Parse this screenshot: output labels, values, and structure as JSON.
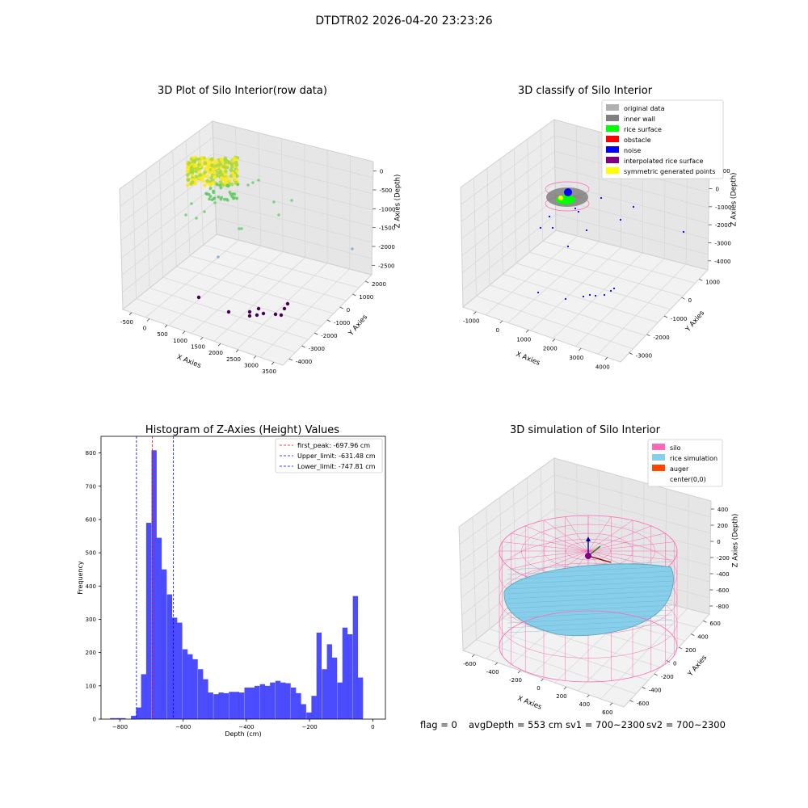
{
  "figure": {
    "title": "DTDTR02 2026-04-20 23:23:26"
  },
  "status": {
    "flag": "flag = 0",
    "avg_depth": "avgDepth = 553 cm",
    "sv1": "sv1 = 700~2300",
    "sv2": "sv2 = 700~2300"
  },
  "chart_data": [
    {
      "type": "scatter",
      "title": "3D Plot of Silo Interior(row data)",
      "xlabel": "X Axies",
      "ylabel": "Y Axies",
      "zlabel": "Z Axies (Depth)",
      "x_ticks": [
        "-500",
        "0",
        "500",
        "1000",
        "1500",
        "2000",
        "2500",
        "3000",
        "3500"
      ],
      "y_ticks": [
        "2000",
        "1000",
        "0",
        "-1000",
        "-2000",
        "-3000",
        "-4000"
      ],
      "z_ticks": [
        "0",
        "-500",
        "-1000",
        "-1500",
        "-2000",
        "-2500"
      ],
      "colormap": [
        "#440154",
        "#3b528b",
        "#21918c",
        "#5ec962",
        "#fde725"
      ]
    },
    {
      "type": "scatter",
      "title": "3D classify of Silo Interior",
      "xlabel": "X Axies",
      "ylabel": "Y Axies",
      "zlabel": "Z Axies (Depth)",
      "x_ticks": [
        "-1000",
        "0",
        "1000",
        "2000",
        "3000",
        "4000"
      ],
      "y_ticks": [
        "1000",
        "0",
        "-1000",
        "-2000",
        "-3000"
      ],
      "z_ticks": [
        "1000",
        "0",
        "-1000",
        "-2000",
        "-3000",
        "-4000"
      ],
      "legend": [
        {
          "label": "original data",
          "color": "#b0b0b0"
        },
        {
          "label": "inner wall",
          "color": "#808080"
        },
        {
          "label": "rice surface",
          "color": "#00ff00"
        },
        {
          "label": "obstacle",
          "color": "#ff0000"
        },
        {
          "label": "noise",
          "color": "#0000ff"
        },
        {
          "label": "interpolated rice surface",
          "color": "#800080"
        },
        {
          "label": "symmetric generated points",
          "color": "#ffff00"
        }
      ]
    },
    {
      "type": "bar",
      "title": "Histogram of Z-Axies (Height) Values",
      "xlabel": "Depth (cm)",
      "ylabel": "Frequency",
      "xlim": [
        -860,
        40
      ],
      "ylim": [
        0,
        850
      ],
      "x_ticks": [
        -800,
        -600,
        -400,
        -200,
        0
      ],
      "y_ticks": [
        0,
        100,
        200,
        300,
        400,
        500,
        600,
        700,
        800
      ],
      "bar_color": "#0000ff",
      "bin_width": 16.3,
      "bins": [
        {
          "x": -823,
          "v": 3
        },
        {
          "x": -806,
          "v": 3
        },
        {
          "x": -790,
          "v": 3
        },
        {
          "x": -774,
          "v": 0
        },
        {
          "x": -757,
          "v": 10
        },
        {
          "x": -741,
          "v": 35
        },
        {
          "x": -725,
          "v": 135
        },
        {
          "x": -709,
          "v": 590
        },
        {
          "x": -692,
          "v": 808
        },
        {
          "x": -676,
          "v": 545
        },
        {
          "x": -660,
          "v": 450
        },
        {
          "x": -643,
          "v": 375
        },
        {
          "x": -627,
          "v": 305
        },
        {
          "x": -611,
          "v": 290
        },
        {
          "x": -594,
          "v": 210
        },
        {
          "x": -578,
          "v": 195
        },
        {
          "x": -562,
          "v": 180
        },
        {
          "x": -545,
          "v": 150
        },
        {
          "x": -529,
          "v": 120
        },
        {
          "x": -513,
          "v": 80
        },
        {
          "x": -496,
          "v": 75
        },
        {
          "x": -480,
          "v": 80
        },
        {
          "x": -464,
          "v": 78
        },
        {
          "x": -447,
          "v": 82
        },
        {
          "x": -431,
          "v": 82
        },
        {
          "x": -415,
          "v": 80
        },
        {
          "x": -398,
          "v": 95
        },
        {
          "x": -382,
          "v": 95
        },
        {
          "x": -366,
          "v": 100
        },
        {
          "x": -349,
          "v": 105
        },
        {
          "x": -333,
          "v": 100
        },
        {
          "x": -317,
          "v": 110
        },
        {
          "x": -300,
          "v": 115
        },
        {
          "x": -284,
          "v": 110
        },
        {
          "x": -268,
          "v": 108
        },
        {
          "x": -251,
          "v": 95
        },
        {
          "x": -235,
          "v": 78
        },
        {
          "x": -219,
          "v": 45
        },
        {
          "x": -202,
          "v": 20
        },
        {
          "x": -186,
          "v": 70
        },
        {
          "x": -170,
          "v": 260
        },
        {
          "x": -153,
          "v": 150
        },
        {
          "x": -137,
          "v": 225
        },
        {
          "x": -121,
          "v": 185
        },
        {
          "x": -104,
          "v": 110
        },
        {
          "x": -88,
          "v": 275
        },
        {
          "x": -72,
          "v": 255
        },
        {
          "x": -55,
          "v": 370
        },
        {
          "x": -39,
          "v": 125
        }
      ],
      "vlines": [
        {
          "label": "first_peak: -697.96 cm",
          "x": -697.96,
          "color": "#ff0000"
        },
        {
          "label": "Upper_limit: -631.48 cm",
          "x": -631.48,
          "color": "#0000ff"
        },
        {
          "label": "Lower_limit: -747.81 cm",
          "x": -747.81,
          "color": "#0000ff"
        }
      ]
    },
    {
      "type": "area",
      "title": "3D simulation of Silo Interior",
      "xlabel": "X Axies",
      "ylabel": "Y Axies",
      "zlabel": "Z Axies (Depth)",
      "x_ticks": [
        "-600",
        "-400",
        "-200",
        "0",
        "200",
        "400",
        "600"
      ],
      "y_ticks": [
        "600",
        "400",
        "200",
        "0",
        "-200",
        "-400",
        "-600"
      ],
      "z_ticks": [
        "400",
        "200",
        "0",
        "-200",
        "-400",
        "-600",
        "-800"
      ],
      "legend": [
        {
          "label": "silo",
          "color": "#ff69b4"
        },
        {
          "label": "rice simulation",
          "color": "#87ceeb"
        },
        {
          "label": "auger",
          "color": "#ff4500"
        },
        {
          "label": "center(0,0)",
          "color": "#ffffff"
        }
      ]
    }
  ]
}
